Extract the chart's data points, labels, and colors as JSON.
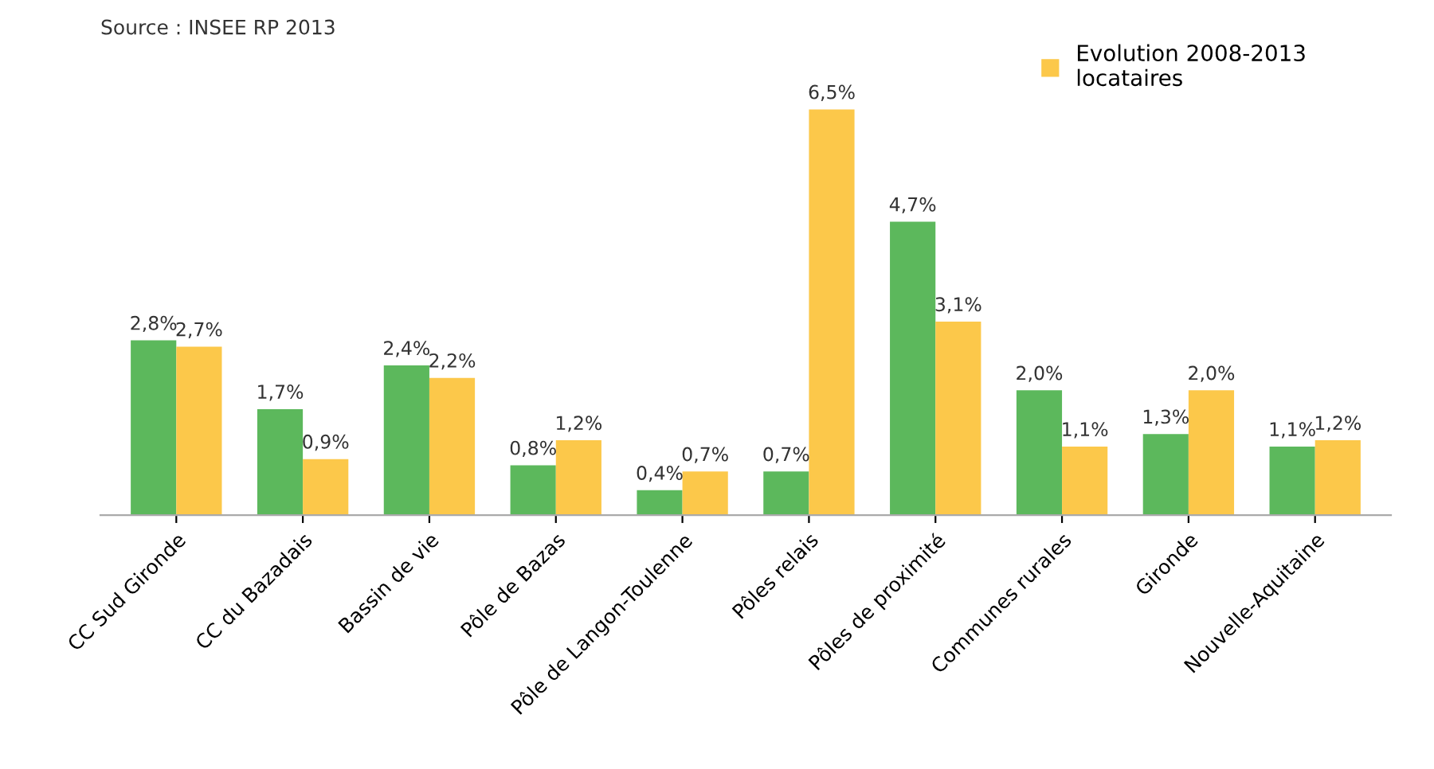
{
  "chart_data": {
    "type": "bar",
    "annotations": [
      "Source : INSEE RP 2013"
    ],
    "categories": [
      "CC Sud Gironde",
      "CC du Bazadais",
      "Bassin de vie",
      "Pôle de Bazas",
      "Pôle de Langon-Toulenne",
      "Pôles relais",
      "Pôles de proximité",
      "Communes rurales",
      "Gironde",
      "Nouvelle-Aquitaine"
    ],
    "series": [
      {
        "color": "#5cb85c",
        "values": [
          2.8,
          1.7,
          2.4,
          0.8,
          0.4,
          0.7,
          4.7,
          2.0,
          1.3,
          1.1
        ],
        "value_labels": [
          "2,8%",
          "1,7%",
          "2,4%",
          "0,8%",
          "0,4%",
          "0,7%",
          "4,7%",
          "2,0%",
          "1,3%",
          "1,1%"
        ]
      },
      {
        "name": "Evolution 2008-2013\nlocataires",
        "color": "#fcc84a",
        "values": [
          2.7,
          0.9,
          2.2,
          1.2,
          0.7,
          6.5,
          3.1,
          1.1,
          2.0,
          1.2
        ],
        "value_labels": [
          "2,7%",
          "0,9%",
          "2,2%",
          "1,2%",
          "0,7%",
          "6,5%",
          "3,1%",
          "1,1%",
          "2,0%",
          "1,2%"
        ]
      }
    ],
    "legend": "top right",
    "grid": false
  }
}
